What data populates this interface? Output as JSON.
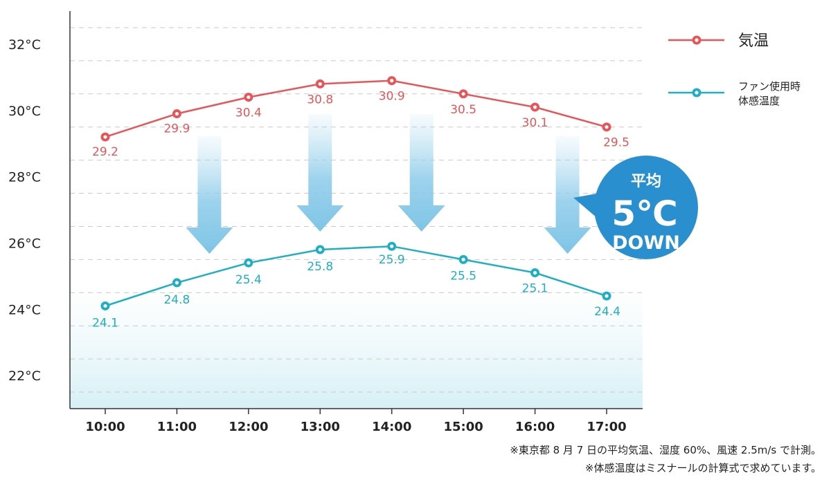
{
  "chart_data": {
    "type": "line",
    "categories": [
      "10:00",
      "11:00",
      "12:00",
      "13:00",
      "14:00",
      "15:00",
      "16:00",
      "17:00"
    ],
    "ylim": [
      21,
      33
    ],
    "yticks": [
      "22°C",
      "24°C",
      "26°C",
      "28°C",
      "30°C",
      "32°C"
    ],
    "ytick_values": [
      22,
      24,
      26,
      28,
      30,
      32
    ],
    "grid": true,
    "series": [
      {
        "name": "気温",
        "color": "#e85457",
        "values": [
          29.2,
          29.9,
          30.4,
          30.8,
          30.9,
          30.5,
          30.1,
          29.5
        ],
        "labels": [
          "29.2",
          "29.9",
          "30.4",
          "30.8",
          "30.9",
          "30.5",
          "30.1",
          "29.5"
        ]
      },
      {
        "name": "ファン使用時体感温度",
        "name_lines": [
          "ファン使用時",
          "体感温度"
        ],
        "color": "#1fafc3",
        "values": [
          24.1,
          24.8,
          25.4,
          25.8,
          25.9,
          25.5,
          25.1,
          24.4
        ],
        "labels": [
          "24.1",
          "24.8",
          "25.4",
          "25.8",
          "25.9",
          "25.5",
          "25.1",
          "24.4"
        ]
      }
    ],
    "legend_position": "right",
    "annotation": {
      "line1": "平均",
      "line2": "5℃",
      "line3": "DOWN",
      "color": "#2a8fcf"
    },
    "arrow_color": "#7ec4e6"
  },
  "notes": {
    "line1": "※東京都 8 月 7 日の平均気温、湿度 60%、風速 2.5m/s で計測。",
    "line2": "※体感温度はミスナールの計算式で求めています。"
  }
}
